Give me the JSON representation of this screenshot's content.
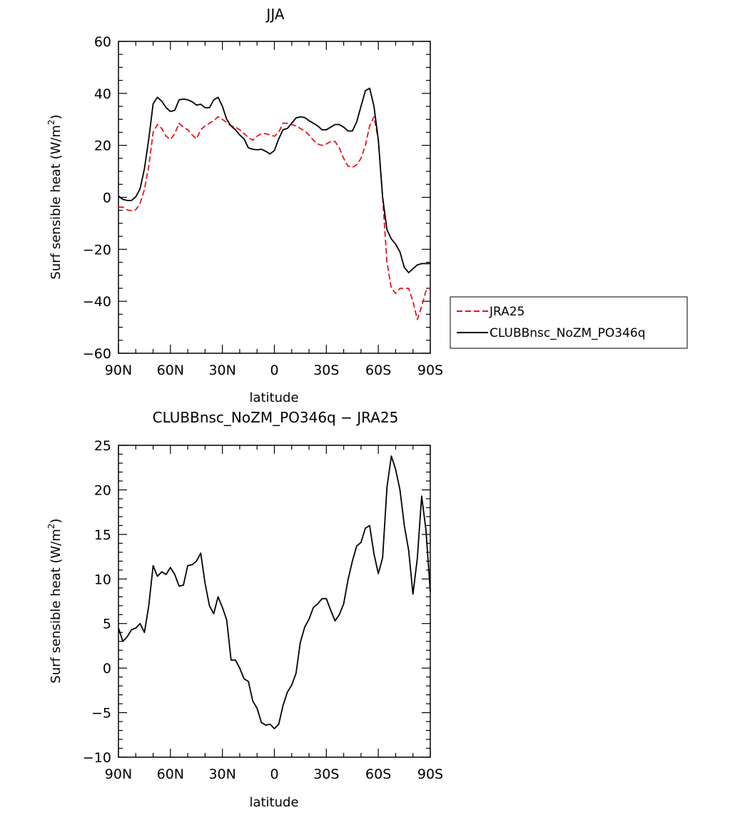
{
  "chart_data": [
    {
      "type": "line",
      "title": "JJA",
      "xlabel": "latitude",
      "ylabel": "Surf sensible heat (W/m",
      "ylabel_sup": "2",
      "ylabel_close": ")",
      "xlim": [
        90,
        -90
      ],
      "ylim": [
        -60,
        60
      ],
      "x_ticks": [
        90,
        60,
        30,
        0,
        -30,
        -60,
        -90
      ],
      "x_tick_labels": [
        "90N",
        "60N",
        "30N",
        "0",
        "30S",
        "60S",
        "90S"
      ],
      "y_ticks": [
        -60,
        -40,
        -20,
        0,
        20,
        40,
        60
      ],
      "y_tick_labels": [
        "−60",
        "−40",
        "−20",
        "0",
        "20",
        "40",
        "60"
      ],
      "legend_position": "right",
      "series": [
        {
          "name": "JRA25",
          "color": "#e8141c",
          "dash": "dashed",
          "x": [
            90,
            87.5,
            85,
            82.5,
            80,
            77.5,
            75,
            72.5,
            70,
            67.5,
            65,
            62.5,
            60,
            57.5,
            55,
            52.5,
            50,
            47.5,
            45,
            42.5,
            40,
            37.5,
            35,
            32.5,
            30,
            27.5,
            25,
            22.5,
            20,
            17.5,
            15,
            12.5,
            10,
            7.5,
            5,
            2.5,
            0,
            -2.5,
            -5,
            -7.5,
            -10,
            -12.5,
            -15,
            -17.5,
            -20,
            -22.5,
            -25,
            -27.5,
            -30,
            -32.5,
            -35,
            -37.5,
            -40,
            -42.5,
            -45,
            -47.5,
            -50,
            -52.5,
            -55,
            -57.5,
            -60,
            -62.5,
            -65,
            -67.5,
            -70,
            -72.5,
            -75,
            -77.5,
            -80,
            -82.5,
            -85,
            -87.5,
            -90
          ],
          "values": [
            -3.8,
            -3.8,
            -4.8,
            -5.2,
            -4.8,
            -2.3,
            3,
            12,
            25,
            28,
            26.5,
            23.5,
            22.3,
            24.5,
            28.5,
            27,
            26,
            24,
            22.5,
            26,
            27.5,
            28.5,
            29.5,
            31,
            30,
            28.8,
            27.5,
            27,
            26,
            24.5,
            23,
            22,
            23.5,
            24.5,
            24.5,
            24,
            23.5,
            25,
            28.5,
            28.5,
            28,
            27.5,
            26.5,
            25.5,
            24,
            22,
            20.5,
            20,
            20.5,
            21.5,
            21.5,
            19,
            15,
            12,
            11.5,
            12.5,
            15,
            20,
            27.5,
            31,
            22,
            0,
            -25,
            -35,
            -37,
            -35,
            -35,
            -35,
            -40,
            -47,
            -42,
            -36,
            -35
          ]
        },
        {
          "name": "CLUBBnsc_NoZM_PO346q",
          "color": "#000000",
          "dash": "solid",
          "x": [
            90,
            87.5,
            85,
            82.5,
            80,
            77.5,
            75,
            72.5,
            70,
            67.5,
            65,
            62.5,
            60,
            57.5,
            55,
            52.5,
            50,
            47.5,
            45,
            42.5,
            40,
            37.5,
            35,
            32.5,
            30,
            27.5,
            25,
            22.5,
            20,
            17.5,
            15,
            12.5,
            10,
            7.5,
            5,
            2.5,
            0,
            -2.5,
            -5,
            -7.5,
            -10,
            -12.5,
            -15,
            -17.5,
            -20,
            -22.5,
            -25,
            -27.5,
            -30,
            -32.5,
            -35,
            -37.5,
            -40,
            -42.5,
            -45,
            -47.5,
            -50,
            -52.5,
            -55,
            -57.5,
            -60,
            -62.5,
            -65,
            -67.5,
            -70,
            -72.5,
            -75,
            -77.5,
            -80,
            -82.5,
            -85,
            -87.5,
            -90
          ],
          "values": [
            0.5,
            -0.8,
            -1.2,
            -1.2,
            0.2,
            3.3,
            11,
            22.5,
            36,
            38.5,
            37,
            34.5,
            33,
            33.5,
            37.5,
            37.8,
            37.5,
            36.8,
            35.5,
            35.8,
            34.5,
            34.5,
            37.5,
            38.5,
            35,
            30,
            27.5,
            26,
            24,
            22.5,
            19,
            18.5,
            18.3,
            18.5,
            17.7,
            16.7,
            18,
            22.5,
            26,
            26.5,
            28.5,
            30.5,
            31,
            30.7,
            29.5,
            28.5,
            27.5,
            26,
            26,
            27,
            28,
            28,
            27,
            25.5,
            25.5,
            29,
            35,
            41,
            42,
            35,
            22,
            0,
            -12.5,
            -16,
            -18,
            -21,
            -27,
            -29,
            -27.5,
            -26,
            -25.5,
            -25.5,
            -25.5
          ]
        }
      ]
    },
    {
      "type": "line",
      "title": "CLUBBnsc_NoZM_PO346q − JRA25",
      "xlabel": "latitude",
      "ylabel": "Surf sensible heat (W/m",
      "ylabel_sup": "2",
      "ylabel_close": ")",
      "xlim": [
        90,
        -90
      ],
      "ylim": [
        -10,
        25
      ],
      "x_ticks": [
        90,
        60,
        30,
        0,
        -30,
        -60,
        -90
      ],
      "x_tick_labels": [
        "90N",
        "60N",
        "30N",
        "0",
        "30S",
        "60S",
        "90S"
      ],
      "y_ticks": [
        -10,
        -5,
        0,
        5,
        10,
        15,
        20,
        25
      ],
      "y_tick_labels": [
        "−10",
        "−5",
        "0",
        "5",
        "10",
        "15",
        "20",
        "25"
      ],
      "series": [
        {
          "color": "#000000",
          "dash": "solid",
          "x": [
            90,
            87.5,
            85,
            82.5,
            80,
            77.5,
            75,
            72.5,
            70,
            67.5,
            65,
            62.5,
            60,
            57.5,
            55,
            52.5,
            50,
            47.5,
            45,
            42.5,
            40,
            37.5,
            35,
            32.5,
            30,
            27.5,
            25,
            22.5,
            20,
            17.5,
            15,
            12.5,
            10,
            7.5,
            5,
            2.5,
            0,
            -2.5,
            -5,
            -7.5,
            -10,
            -12.5,
            -15,
            -17.5,
            -20,
            -22.5,
            -25,
            -27.5,
            -30,
            -32.5,
            -35,
            -37.5,
            -40,
            -42.5,
            -45,
            -47.5,
            -50,
            -52.5,
            -55,
            -57.5,
            -60,
            -62.5,
            -65,
            -67.5,
            -70,
            -72.5,
            -75,
            -77.5,
            -80,
            -82.5,
            -85,
            -87.5,
            -90
          ],
          "values": [
            4.5,
            3,
            3.5,
            4.3,
            4.5,
            5,
            4,
            7,
            11.5,
            10.3,
            10.8,
            10.5,
            11.3,
            10.5,
            9.2,
            9.3,
            11.5,
            11.6,
            12,
            12.9,
            9.5,
            7,
            6.1,
            8,
            6.8,
            5.4,
            0.9,
            0.9,
            0,
            -1.2,
            -1.5,
            -3.7,
            -4.5,
            -6.1,
            -6.4,
            -6.3,
            -6.8,
            -6.3,
            -4.2,
            -2.7,
            -1.9,
            -0.6,
            2.9,
            4.6,
            5.5,
            6.8,
            7.2,
            7.8,
            7.8,
            6.5,
            5.3,
            6,
            7.2,
            9.9,
            12,
            13.7,
            14.1,
            15.7,
            16,
            12.8,
            10.6,
            12.4,
            20.3,
            23.8,
            22.3,
            20,
            16,
            13.2,
            8.3,
            12.3,
            19.3,
            15.5,
            8.6
          ]
        }
      ]
    }
  ]
}
